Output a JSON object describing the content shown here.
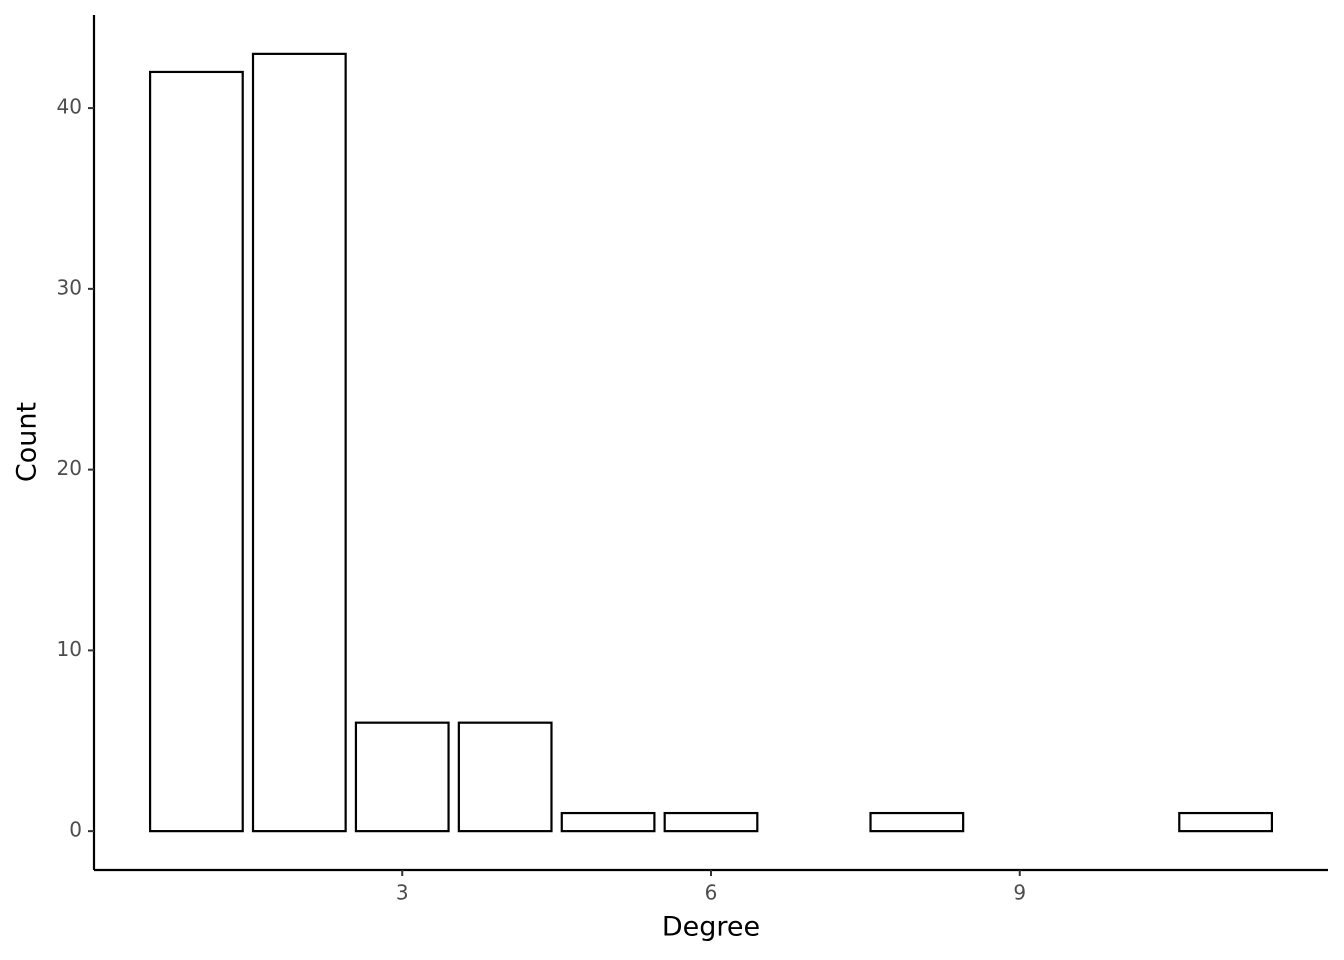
{
  "chart_data": {
    "type": "bar",
    "x": [
      1,
      2,
      3,
      4,
      5,
      6,
      8,
      11
    ],
    "values": [
      42,
      43,
      6,
      6,
      1,
      1,
      1,
      1
    ],
    "color": "#ffffff",
    "edgecolor": "#000000",
    "xlabel": "Degree",
    "ylabel": "Count",
    "xlim": [
      0.005,
      11.995
    ],
    "xticks": [
      3,
      6,
      9
    ],
    "ylim": [
      -2.15,
      45.15
    ],
    "yticks": [
      0,
      10,
      20,
      30,
      40
    ],
    "grid": false
  }
}
